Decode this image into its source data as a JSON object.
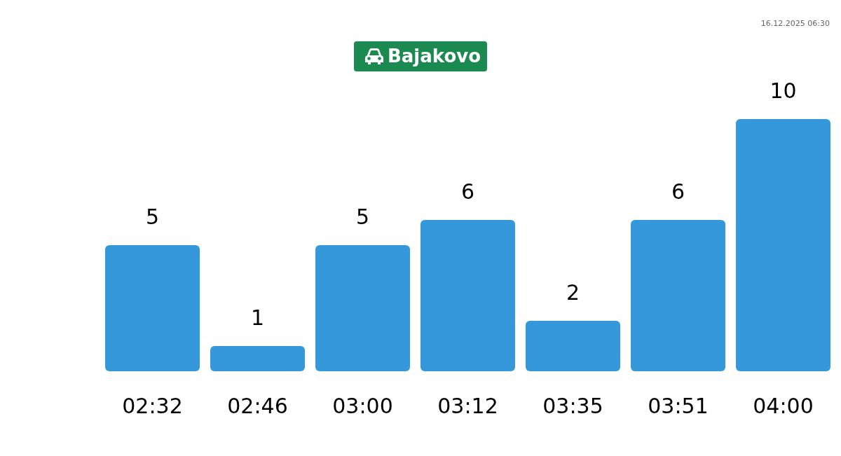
{
  "chart_data": {
    "type": "bar",
    "title": "Bajakovo",
    "categories": [
      "02:32",
      "02:46",
      "03:00",
      "03:12",
      "03:35",
      "03:51",
      "04:00"
    ],
    "values": [
      5,
      1,
      5,
      6,
      2,
      6,
      10
    ],
    "color": "#3498db",
    "data_labels": true,
    "annotations": [
      "16.12.2025 06:30"
    ]
  }
}
